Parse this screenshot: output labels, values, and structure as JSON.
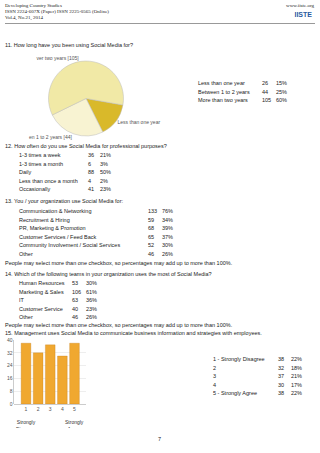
{
  "document": {
    "header": {
      "journal": "Developing Country Studies",
      "issn": "ISSN 2224-607X (Paper) ISSN 2225-0565 (Online)",
      "volume": "Vol.4, No.21, 2014",
      "website": "www.iiste.org",
      "logo": "IISTE"
    },
    "questions": [
      {
        "question": "11. How long have you been using Social Media for?",
        "rows": [
          {
            "label": "Less than one year",
            "count": 26,
            "percent": "15%"
          },
          {
            "label": "Between 1 to 2 years",
            "count": 44,
            "percent": "25%"
          },
          {
            "label": "More than two years",
            "count": 105,
            "percent": "60%"
          }
        ]
      },
      {
        "question": "12. How often do you use Social Media for professional purposes?",
        "rows": [
          {
            "label": "1-3 times a week",
            "count": 36,
            "percent": "21%"
          },
          {
            "label": "1-3 times a month",
            "count": 6,
            "percent": "3%"
          },
          {
            "label": "Daily",
            "count": 88,
            "percent": "50%"
          },
          {
            "label": "Less than once a month",
            "count": 4,
            "percent": "2%"
          },
          {
            "label": "Occasionally",
            "count": 41,
            "percent": "23%"
          }
        ]
      },
      {
        "question": "13. You / your organization use Social Media for:",
        "rows": [
          {
            "label": "Communication & Networking",
            "count": 133,
            "percent": "76%"
          },
          {
            "label": "Recruitment & Hiring",
            "count": 59,
            "percent": "34%"
          },
          {
            "label": "PR, Marketing & Promotion",
            "count": 68,
            "percent": "39%"
          },
          {
            "label": "Customer Services / Feed Back",
            "count": 65,
            "percent": "37%"
          },
          {
            "label": "Community Involvement / Social Services",
            "count": 52,
            "percent": "30%"
          },
          {
            "label": "Other",
            "count": 46,
            "percent": "26%"
          }
        ],
        "note": "People may select more than one checkbox, so percentages may add up to more than 100%."
      },
      {
        "question": "14. Which of the following teams in your organization uses the most of Social Media?",
        "rows": [
          {
            "label": "Human Resources",
            "count": 53,
            "percent": "30%"
          },
          {
            "label": "Marketing & Sales",
            "count": 106,
            "percent": "61%"
          },
          {
            "label": "IT",
            "count": 63,
            "percent": "36%"
          },
          {
            "label": "Customer Service",
            "count": 40,
            "percent": "23%"
          },
          {
            "label": "Other",
            "count": 46,
            "percent": "26%"
          }
        ],
        "note": "People may select more than one checkbox, so percentages may add up to more than 100%."
      },
      {
        "question": "15. Management uses Social Media to communicate business information and strategies with employees.",
        "rows": [
          {
            "label": "1 - Strongly Disagree",
            "count": 38,
            "percent": "22%"
          },
          {
            "label": "2",
            "count": 32,
            "percent": "18%"
          },
          {
            "label": "3",
            "count": 37,
            "percent": "21%"
          },
          {
            "label": "4",
            "count": 30,
            "percent": "17%"
          },
          {
            "label": "5 - Strongly Agree",
            "count": 38,
            "percent": "22%"
          }
        ]
      }
    ],
    "page_number": "7"
  },
  "chart_data": [
    {
      "type": "pie",
      "categories": [
        "Less than one year",
        "en 1 to 2 years [44]",
        "ver two years [105]"
      ],
      "values": [
        26,
        44,
        105
      ],
      "colors": [
        "#d9b92a",
        "#f8f3d2",
        "#f1e9a6"
      ]
    },
    {
      "type": "bar",
      "categories": [
        "1",
        "2",
        "3",
        "4",
        "5"
      ],
      "values": [
        38,
        32,
        37,
        30,
        38
      ],
      "color": "#f0a830",
      "ylim": [
        0,
        40
      ],
      "yticks": [
        0,
        8,
        16,
        24,
        32,
        40
      ],
      "grid": true,
      "annotations": [
        {
          "text": "Strongly\nDisagree",
          "x": 0
        },
        {
          "text": "Strongly\nAgree",
          "x": 4
        }
      ]
    }
  ]
}
